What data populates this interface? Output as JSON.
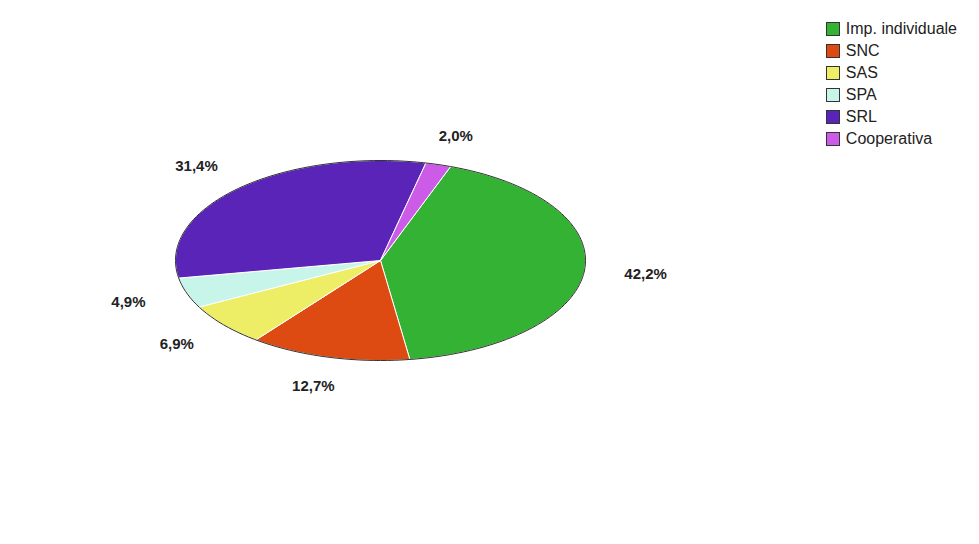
{
  "chart_data": {
    "type": "pie",
    "categories": [
      "Imp. individuale",
      "SNC",
      "SAS",
      "SPA",
      "SRL",
      "Cooperativa"
    ],
    "values": [
      42.2,
      12.7,
      6.9,
      4.9,
      31.4,
      2.0
    ],
    "value_labels": [
      "42,2%",
      "12,7%",
      "6,9%",
      "4,9%",
      "31,4%",
      "2,0%"
    ],
    "colors": [
      "#33b233",
      "#dd4a12",
      "#eeee66",
      "#c8f5ea",
      "#5a24b8",
      "#cc5be8"
    ],
    "data_labels": true,
    "legend": "top-right"
  }
}
